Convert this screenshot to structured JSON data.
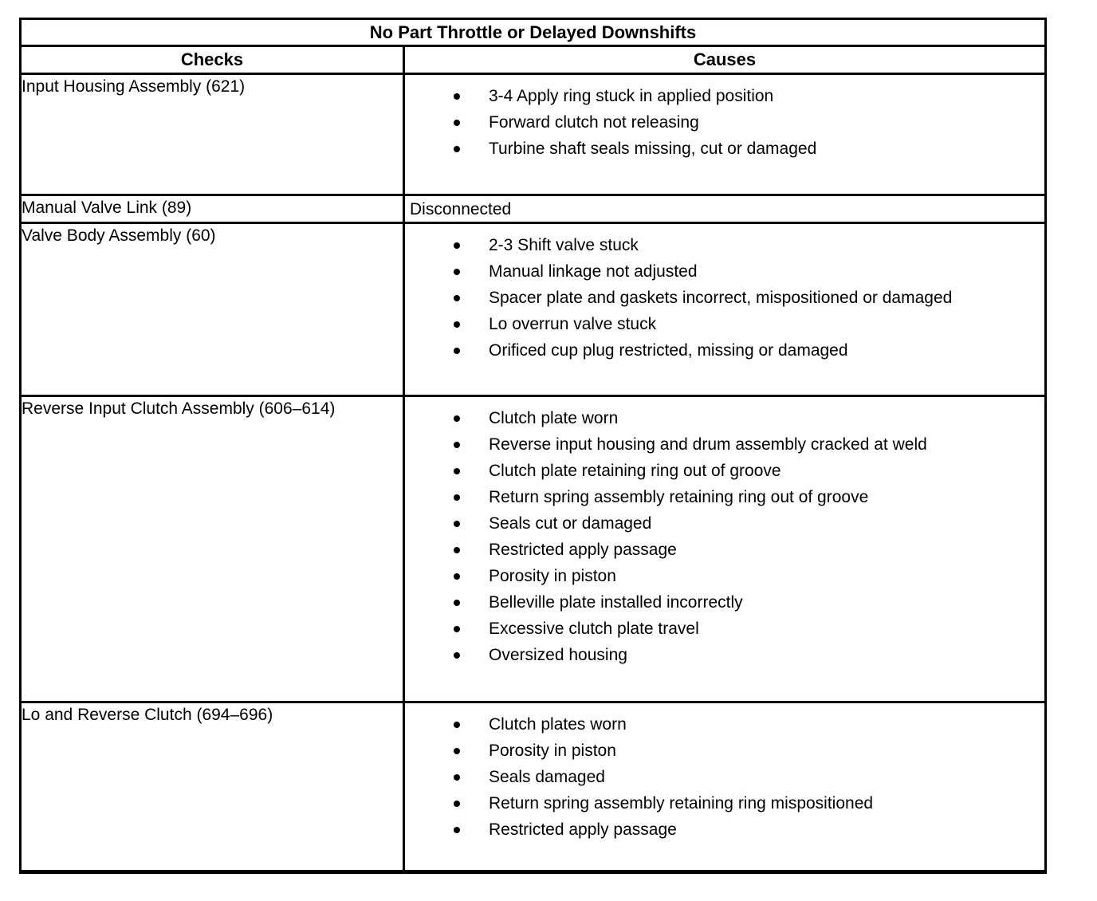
{
  "table": {
    "title": "No Part Throttle or Delayed Downshifts",
    "columns": [
      "Checks",
      "Causes"
    ],
    "bullet_icon": "•",
    "rows": [
      {
        "check": "Input Housing Assembly (621)",
        "bulleted": true,
        "causes": [
          "3-4 Apply ring stuck in applied position",
          "Forward clutch not releasing",
          "Turbine shaft seals missing, cut or damaged"
        ]
      },
      {
        "check": "Manual Valve Link (89)",
        "bulleted": false,
        "causes": [
          "Disconnected"
        ]
      },
      {
        "check": "Valve Body Assembly (60)",
        "bulleted": true,
        "causes": [
          "2-3 Shift valve stuck",
          "Manual linkage not adjusted",
          "Spacer plate and gaskets incorrect, mispositioned or damaged",
          "Lo overrun valve stuck",
          "Orificed cup plug restricted, missing or damaged"
        ]
      },
      {
        "check": "Reverse Input Clutch Assembly (606–614)",
        "bulleted": true,
        "causes": [
          "Clutch plate worn",
          "Reverse input housing and drum assembly cracked at weld",
          "Clutch plate retaining ring out of groove",
          "Return spring assembly retaining ring out of groove",
          "Seals cut or damaged",
          "Restricted apply passage",
          "Porosity in piston",
          "Belleville plate installed incorrectly",
          "Excessive clutch plate travel",
          "Oversized housing"
        ]
      },
      {
        "check": "Lo and Reverse Clutch (694–696)",
        "bulleted": true,
        "causes": [
          "Clutch plates worn",
          "Porosity in piston",
          "Seals damaged",
          "Return spring assembly retaining ring mispositioned",
          "Restricted apply passage"
        ]
      }
    ]
  },
  "colors": {
    "border": "#000000",
    "background": "#ffffff",
    "text": "#000000"
  }
}
